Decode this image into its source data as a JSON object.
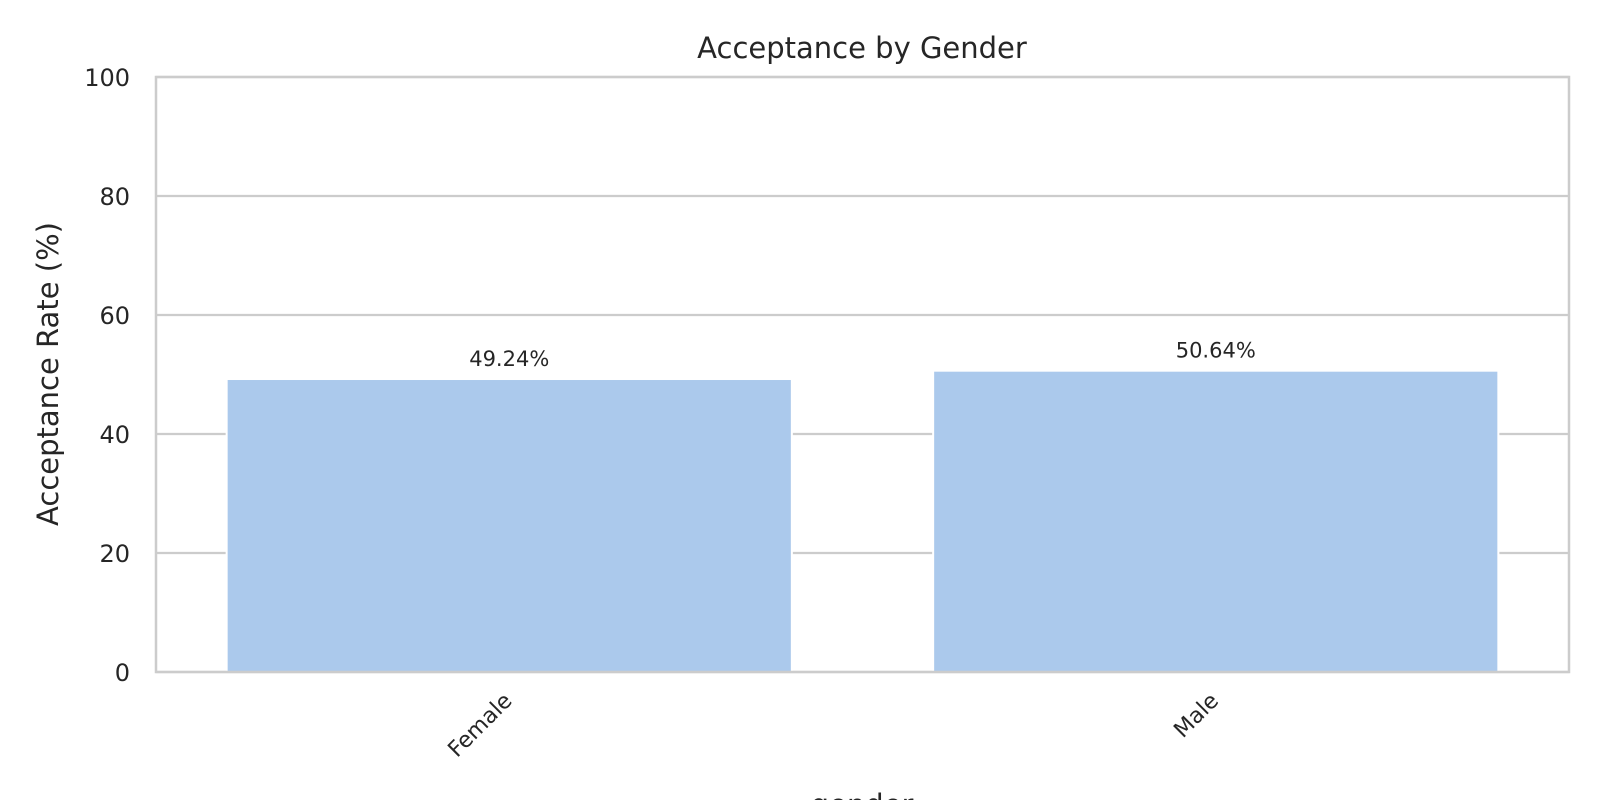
{
  "chart_data": {
    "type": "bar",
    "title": "Acceptance by Gender",
    "xlabel": "gender",
    "ylabel": "Acceptance Rate (%)",
    "categories": [
      "Female",
      "Male"
    ],
    "values": [
      49.24,
      50.64
    ],
    "data_labels": [
      "49.24%",
      "50.64%"
    ],
    "ylim": [
      0,
      100
    ],
    "yticks": [
      0,
      20,
      40,
      60,
      80,
      100
    ],
    "ytick_labels": [
      "0",
      "20",
      "40",
      "60",
      "80",
      "100"
    ],
    "grid": "horizontal",
    "legend": "none",
    "colors": {
      "bar": "#abc9ec",
      "grid": "#cccccc",
      "frame": "#cccccc",
      "text": "#262626",
      "background": "#ffffff"
    }
  }
}
